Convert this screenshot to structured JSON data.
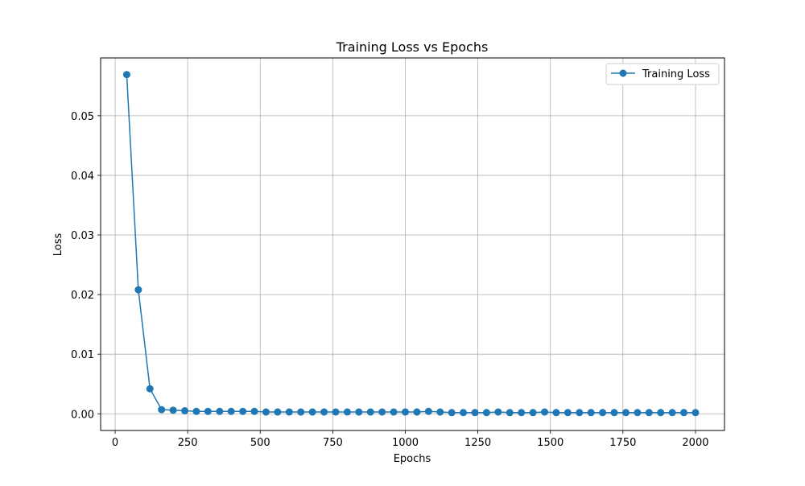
{
  "chart_data": {
    "type": "line",
    "title": "Training Loss vs Epochs",
    "xlabel": "Epochs",
    "ylabel": "Loss",
    "xlim": [
      -50,
      2100
    ],
    "ylim": [
      -0.0028,
      0.0597
    ],
    "xticks": [
      0,
      250,
      500,
      750,
      1000,
      1250,
      1500,
      1750,
      2000
    ],
    "xtick_labels": [
      "0",
      "250",
      "500",
      "750",
      "1000",
      "1250",
      "1500",
      "1750",
      "2000"
    ],
    "yticks": [
      0.0,
      0.01,
      0.02,
      0.03,
      0.04,
      0.05
    ],
    "ytick_labels": [
      "0.00",
      "0.01",
      "0.02",
      "0.03",
      "0.04",
      "0.05"
    ],
    "grid": true,
    "legend_position": "top-right",
    "series": [
      {
        "name": "Training Loss",
        "color": "#1f77b4",
        "marker": "circle",
        "x": [
          40,
          80,
          120,
          160,
          200,
          240,
          280,
          320,
          360,
          400,
          440,
          480,
          520,
          560,
          600,
          640,
          680,
          720,
          760,
          800,
          840,
          880,
          920,
          960,
          1000,
          1040,
          1080,
          1120,
          1160,
          1200,
          1240,
          1280,
          1320,
          1360,
          1400,
          1440,
          1480,
          1520,
          1560,
          1600,
          1640,
          1680,
          1720,
          1760,
          1800,
          1840,
          1880,
          1920,
          1960,
          2000
        ],
        "values": [
          0.0569,
          0.0208,
          0.0042,
          0.0007,
          0.0006,
          0.0005,
          0.0004,
          0.0004,
          0.0004,
          0.0004,
          0.0004,
          0.0004,
          0.0003,
          0.0003,
          0.0003,
          0.0003,
          0.0003,
          0.0003,
          0.0003,
          0.0003,
          0.0003,
          0.0003,
          0.0003,
          0.0003,
          0.0003,
          0.0003,
          0.0004,
          0.0003,
          0.0002,
          0.0002,
          0.0002,
          0.0002,
          0.0003,
          0.0002,
          0.0002,
          0.0002,
          0.0003,
          0.0002,
          0.0002,
          0.0002,
          0.0002,
          0.0002,
          0.0002,
          0.0002,
          0.0002,
          0.0002,
          0.0002,
          0.0002,
          0.0002,
          0.0002
        ]
      }
    ]
  }
}
